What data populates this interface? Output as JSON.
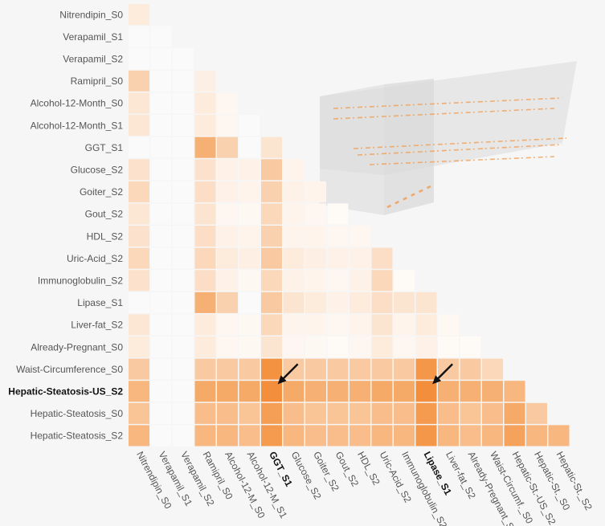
{
  "chart_data": {
    "type": "heatmap",
    "title": "",
    "color_scale": [
      "#ffffff",
      "#f5a35c",
      "#f28b35"
    ],
    "row_labels": [
      "Nitrendipin_S0",
      "Verapamil_S1",
      "Verapamil_S2",
      "Ramipril_S0",
      "Alcohol-12-Month_S0",
      "Alcohol-12-Month_S1",
      "GGT_S1",
      "Glucose_S2",
      "Goiter_S2",
      "Gout_S2",
      "HDL_S2",
      "Uric-Acid_S2",
      "Immunoglobulin_S2",
      "Lipase_S1",
      "Liver-fat_S2",
      "Already-Pregnant_S0",
      "Waist-Circumference_S0",
      "Hepatic-Steatosis-US_S2",
      "Hepatic-Steatosis_S0",
      "Hepatic-Steatosis_S2"
    ],
    "col_labels": [
      "Nitrendipin_S0",
      "Verapamil_S1",
      "Verapamil_S2",
      "Ramipril_S0",
      "Alcohol-12-M_S0",
      "Alcohol-12-M_S1",
      "GGT_S1",
      "Glucose_S2",
      "Goiter_S2",
      "Gout_S2",
      "HDL_S2",
      "Uric-Acid_S2",
      "Immunoglobulin_S2",
      "Lipase_S1",
      "Liver-fat_S2",
      "Already-Pregnant_S0",
      "Waist-Circumf._S0",
      "Hepatic-St.-US_S2",
      "Hepatic-St._S0",
      "Hepatic-St._S2"
    ],
    "bold_rows": [
      "Hepatic-Steatosis-US_S2"
    ],
    "bold_cols": [
      "GGT_S1",
      "Lipase_S1"
    ],
    "arrow_targets": [
      {
        "row": "Hepatic-Steatosis-US_S2",
        "col": "GGT_S1"
      },
      {
        "row": "Hepatic-Steatosis-US_S2",
        "col": "Lipase_S1"
      }
    ],
    "values": [
      [
        0.15
      ],
      [
        0.0,
        0.0
      ],
      [
        0.0,
        0.0,
        0.0
      ],
      [
        0.35,
        0.0,
        0.0,
        0.12
      ],
      [
        0.18,
        0.0,
        0.0,
        0.15,
        0.06
      ],
      [
        0.18,
        0.0,
        0.0,
        0.15,
        0.06,
        0.0
      ],
      [
        0.0,
        0.0,
        0.0,
        0.6,
        0.35,
        0.0,
        0.2
      ],
      [
        0.22,
        0.0,
        0.0,
        0.22,
        0.1,
        0.1,
        0.4,
        0.08
      ],
      [
        0.3,
        0.0,
        0.0,
        0.25,
        0.1,
        0.08,
        0.35,
        0.1,
        0.08
      ],
      [
        0.18,
        0.0,
        0.0,
        0.2,
        0.06,
        0.05,
        0.3,
        0.08,
        0.06,
        0.04
      ],
      [
        0.22,
        0.0,
        0.0,
        0.25,
        0.1,
        0.08,
        0.35,
        0.08,
        0.08,
        0.06,
        0.06
      ],
      [
        0.3,
        0.0,
        0.0,
        0.3,
        0.15,
        0.12,
        0.4,
        0.15,
        0.12,
        0.1,
        0.1,
        0.25
      ],
      [
        0.22,
        0.0,
        0.0,
        0.25,
        0.1,
        0.05,
        0.3,
        0.1,
        0.08,
        0.06,
        0.1,
        0.3,
        0.04
      ],
      [
        0.0,
        0.0,
        0.0,
        0.6,
        0.35,
        0.0,
        0.4,
        0.2,
        0.15,
        0.1,
        0.15,
        0.25,
        0.2,
        0.2
      ],
      [
        0.18,
        0.0,
        0.0,
        0.15,
        0.06,
        0.05,
        0.3,
        0.08,
        0.08,
        0.06,
        0.08,
        0.2,
        0.08,
        0.15,
        0.05
      ],
      [
        0.15,
        0.0,
        0.0,
        0.15,
        0.06,
        0.05,
        0.2,
        0.06,
        0.05,
        0.04,
        0.06,
        0.15,
        0.06,
        0.1,
        0.04,
        0.04
      ],
      [
        0.4,
        0.0,
        0.0,
        0.4,
        0.4,
        0.4,
        0.9,
        0.4,
        0.4,
        0.4,
        0.4,
        0.4,
        0.4,
        0.85,
        0.4,
        0.4,
        0.3
      ],
      [
        0.55,
        0.0,
        0.0,
        0.65,
        0.65,
        0.65,
        0.95,
        0.65,
        0.6,
        0.6,
        0.6,
        0.65,
        0.65,
        0.95,
        0.6,
        0.6,
        0.6,
        0.55
      ],
      [
        0.45,
        0.0,
        0.0,
        0.5,
        0.5,
        0.45,
        0.75,
        0.5,
        0.45,
        0.45,
        0.45,
        0.5,
        0.5,
        0.8,
        0.5,
        0.45,
        0.5,
        0.65,
        0.4
      ],
      [
        0.55,
        0.0,
        0.0,
        0.55,
        0.55,
        0.5,
        0.8,
        0.55,
        0.5,
        0.5,
        0.5,
        0.55,
        0.55,
        0.85,
        0.55,
        0.5,
        0.55,
        0.7,
        0.55,
        0.55
      ]
    ],
    "inset": "3D translucent slab view with orange segment marks"
  }
}
